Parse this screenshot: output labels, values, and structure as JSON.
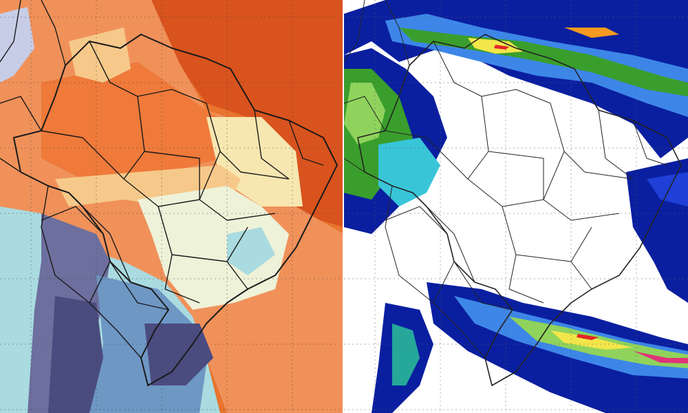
{
  "maps": [
    {
      "id": "temperature-map",
      "palette": {
        "ocean_hot": "#d9531e",
        "ocean_warm": "#e8742e",
        "land_warm": "#f0915a",
        "land_orange": "#ef7a3a",
        "land_pale": "#f6c98a",
        "land_cream": "#f7e6b0",
        "land_light": "#eef2d8",
        "cool_cyan": "#a9dbe0",
        "cool_blue": "#6e97c4",
        "cold_purple": "#6d6f9e",
        "cold_dark": "#4a4c80",
        "andes_light": "#c7cde6"
      }
    },
    {
      "id": "precipitation-map",
      "palette": {
        "background": "#ffffff",
        "navy": "#0a1fa0",
        "blue": "#1f3fd6",
        "light_blue": "#3d86e8",
        "cyan": "#39c5d8",
        "teal": "#25a89a",
        "green": "#3a9e2c",
        "light_green": "#8fd35c",
        "yellow": "#f2e64a",
        "orange": "#f59a1e",
        "red": "#e3262a",
        "magenta": "#e0347a"
      }
    }
  ]
}
